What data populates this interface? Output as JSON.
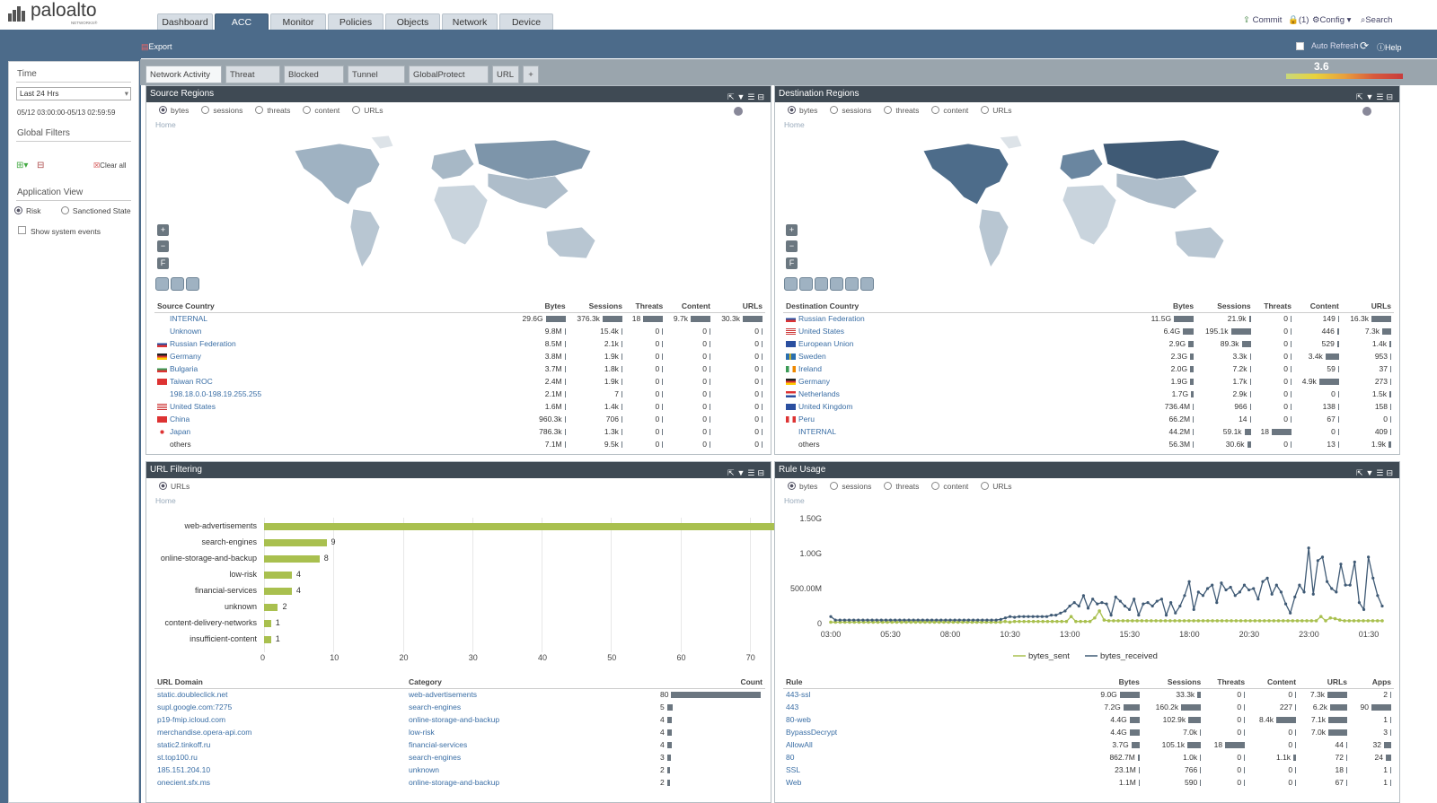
{
  "app": {
    "logo_text": "paloalto",
    "logo_sub": "NETWORKS®",
    "tabs": [
      "Dashboard",
      "ACC",
      "Monitor",
      "Policies",
      "Objects",
      "Network",
      "Device"
    ],
    "active_tab": "ACC",
    "commit": "Commit",
    "lock_count": "(1)",
    "config": "Config",
    "search": "Search",
    "export": "Export",
    "auto_refresh": "Auto Refresh",
    "help": "Help",
    "risk_value": "3.6"
  },
  "left": {
    "time_label": "Time",
    "time_select": "Last 24 Hrs",
    "time_range": "05/12 03:00:00-05/13 02:59:59",
    "global_filters": "Global Filters",
    "clear_all": "Clear all",
    "application_view": "Application View",
    "risk": "Risk",
    "sanctioned": "Sanctioned State",
    "show_system_events": "Show system events"
  },
  "subtabs": [
    "Network Activity",
    "Threat Activity",
    "Blocked Activity",
    "Tunnel Activity",
    "GlobalProtect Activity",
    "URL"
  ],
  "radio_opts": [
    "bytes",
    "sessions",
    "threats",
    "content",
    "URLs"
  ],
  "home": "Home",
  "source": {
    "title": "Source Regions",
    "headers": [
      "Source Country",
      "Bytes",
      "Sessions",
      "Threats",
      "Content",
      "URLs"
    ],
    "rows": [
      {
        "name": "INTERNAL",
        "flag": "",
        "bytes": "29.6G",
        "sessions": "376.3k",
        "threats": "18",
        "content": "9.7k",
        "urls": "30.3k",
        "b": 1,
        "s": 1,
        "t": 1,
        "c": 1,
        "u": 1
      },
      {
        "name": "Unknown",
        "flag": "",
        "bytes": "9.8M",
        "sessions": "15.4k",
        "threats": "0",
        "content": "0",
        "urls": "0",
        "b": 0.02,
        "s": 0.04,
        "t": 0,
        "c": 0,
        "u": 0
      },
      {
        "name": "Russian Federation",
        "flag": "ru",
        "bytes": "8.5M",
        "sessions": "2.1k",
        "threats": "0",
        "content": "0",
        "urls": "0",
        "b": 0.02,
        "s": 0.01,
        "t": 0,
        "c": 0,
        "u": 0
      },
      {
        "name": "Germany",
        "flag": "de",
        "bytes": "3.8M",
        "sessions": "1.9k",
        "threats": "0",
        "content": "0",
        "urls": "0",
        "b": 0.01,
        "s": 0.01,
        "t": 0,
        "c": 0,
        "u": 0
      },
      {
        "name": "Bulgaria",
        "flag": "bg",
        "bytes": "3.7M",
        "sessions": "1.8k",
        "threats": "0",
        "content": "0",
        "urls": "0",
        "b": 0.01,
        "s": 0.01,
        "t": 0,
        "c": 0,
        "u": 0
      },
      {
        "name": "Taiwan ROC",
        "flag": "tw",
        "bytes": "2.4M",
        "sessions": "1.9k",
        "threats": "0",
        "content": "0",
        "urls": "0",
        "b": 0.01,
        "s": 0.01,
        "t": 0,
        "c": 0,
        "u": 0
      },
      {
        "name": "198.18.0.0-198.19.255.255",
        "flag": "",
        "bytes": "2.1M",
        "sessions": "7",
        "threats": "0",
        "content": "0",
        "urls": "0",
        "b": 0.01,
        "s": 0,
        "t": 0,
        "c": 0,
        "u": 0
      },
      {
        "name": "United States",
        "flag": "us",
        "bytes": "1.6M",
        "sessions": "1.4k",
        "threats": "0",
        "content": "0",
        "urls": "0",
        "b": 0.01,
        "s": 0.01,
        "t": 0,
        "c": 0,
        "u": 0
      },
      {
        "name": "China",
        "flag": "cn",
        "bytes": "960.3k",
        "sessions": "706",
        "threats": "0",
        "content": "0",
        "urls": "0",
        "b": 0.01,
        "s": 0,
        "t": 0,
        "c": 0,
        "u": 0
      },
      {
        "name": "Japan",
        "flag": "jp",
        "bytes": "786.3k",
        "sessions": "1.3k",
        "threats": "0",
        "content": "0",
        "urls": "0",
        "b": 0.01,
        "s": 0.01,
        "t": 0,
        "c": 0,
        "u": 0
      },
      {
        "name": "others",
        "flag": "",
        "bytes": "7.1M",
        "sessions": "9.5k",
        "threats": "0",
        "content": "0",
        "urls": "0",
        "b": 0.02,
        "s": 0.03,
        "t": 0,
        "c": 0,
        "u": 0
      }
    ]
  },
  "dest": {
    "title": "Destination Regions",
    "headers": [
      "Destination Country",
      "Bytes",
      "Sessions",
      "Threats",
      "Content",
      "URLs"
    ],
    "rows": [
      {
        "name": "Russian Federation",
        "flag": "ru",
        "bytes": "11.5G",
        "sessions": "21.9k",
        "threats": "0",
        "content": "149",
        "urls": "16.3k",
        "b": 1,
        "s": 0.11,
        "t": 0,
        "c": 0.03,
        "u": 1
      },
      {
        "name": "United States",
        "flag": "us",
        "bytes": "6.4G",
        "sessions": "195.1k",
        "threats": "0",
        "content": "446",
        "urls": "7.3k",
        "b": 0.56,
        "s": 1,
        "t": 0,
        "c": 0.09,
        "u": 0.45
      },
      {
        "name": "European Union",
        "flag": "eu",
        "bytes": "2.9G",
        "sessions": "89.3k",
        "threats": "0",
        "content": "529",
        "urls": "1.4k",
        "b": 0.25,
        "s": 0.46,
        "t": 0,
        "c": 0.11,
        "u": 0.09
      },
      {
        "name": "Sweden",
        "flag": "se",
        "bytes": "2.3G",
        "sessions": "3.3k",
        "threats": "0",
        "content": "3.4k",
        "urls": "953",
        "b": 0.2,
        "s": 0.02,
        "t": 0,
        "c": 0.7,
        "u": 0.06
      },
      {
        "name": "Ireland",
        "flag": "ie",
        "bytes": "2.0G",
        "sessions": "7.2k",
        "threats": "0",
        "content": "59",
        "urls": "37",
        "b": 0.17,
        "s": 0.04,
        "t": 0,
        "c": 0.01,
        "u": 0
      },
      {
        "name": "Germany",
        "flag": "de",
        "bytes": "1.9G",
        "sessions": "1.7k",
        "threats": "0",
        "content": "4.9k",
        "urls": "273",
        "b": 0.17,
        "s": 0.01,
        "t": 0,
        "c": 1,
        "u": 0.02
      },
      {
        "name": "Netherlands",
        "flag": "nl",
        "bytes": "1.7G",
        "sessions": "2.9k",
        "threats": "0",
        "content": "0",
        "urls": "1.5k",
        "b": 0.15,
        "s": 0.01,
        "t": 0,
        "c": 0,
        "u": 0.09
      },
      {
        "name": "United Kingdom",
        "flag": "gb",
        "bytes": "736.4M",
        "sessions": "966",
        "threats": "0",
        "content": "138",
        "urls": "158",
        "b": 0.06,
        "s": 0,
        "t": 0,
        "c": 0.03,
        "u": 0.01
      },
      {
        "name": "Peru",
        "flag": "pe",
        "bytes": "66.2M",
        "sessions": "14",
        "threats": "0",
        "content": "67",
        "urls": "0",
        "b": 0.01,
        "s": 0,
        "t": 0,
        "c": 0.01,
        "u": 0
      },
      {
        "name": "INTERNAL",
        "flag": "",
        "bytes": "44.2M",
        "sessions": "59.1k",
        "threats": "18",
        "content": "0",
        "urls": "409",
        "b": 0.01,
        "s": 0.3,
        "t": 1,
        "c": 0,
        "u": 0.03
      },
      {
        "name": "others",
        "flag": "",
        "bytes": "56.3M",
        "sessions": "30.6k",
        "threats": "0",
        "content": "13",
        "urls": "1.9k",
        "b": 0.01,
        "s": 0.16,
        "t": 0,
        "c": 0,
        "u": 0.12
      }
    ]
  },
  "url_filtering": {
    "title": "URL Filtering",
    "radio": "URLs",
    "headers": [
      "URL Domain",
      "Category",
      "Count"
    ],
    "rows": [
      {
        "domain": "static.doubleclick.net",
        "category": "web-advertisements",
        "count": "80",
        "v": 80
      },
      {
        "domain": "supl.google.com:7275",
        "category": "search-engines",
        "count": "5",
        "v": 5
      },
      {
        "domain": "p19-fmip.icloud.com",
        "category": "online-storage-and-backup",
        "count": "4",
        "v": 4
      },
      {
        "domain": "merchandise.opera-api.com",
        "category": "low-risk",
        "count": "4",
        "v": 4
      },
      {
        "domain": "static2.tinkoff.ru",
        "category": "financial-services",
        "count": "4",
        "v": 4
      },
      {
        "domain": "st.top100.ru",
        "category": "search-engines",
        "count": "3",
        "v": 3
      },
      {
        "domain": "185.151.204.10",
        "category": "unknown",
        "count": "2",
        "v": 2
      },
      {
        "domain": "onecient.sfx.ms",
        "category": "online-storage-and-backup",
        "count": "2",
        "v": 2
      }
    ]
  },
  "rule_usage": {
    "title": "Rule Usage",
    "headers": [
      "Rule",
      "Bytes",
      "Sessions",
      "Threats",
      "Content",
      "URLs",
      "Apps"
    ],
    "rows": [
      {
        "rule": "443-ssl",
        "bytes": "9.0G",
        "sessions": "33.3k",
        "threats": "0",
        "content": "0",
        "urls": "7.3k",
        "apps": "2",
        "b": 1,
        "s": 0.2,
        "t": 0,
        "c": 0,
        "u": 1,
        "a": 0.02
      },
      {
        "rule": "443",
        "bytes": "7.2G",
        "sessions": "160.2k",
        "threats": "0",
        "content": "227",
        "urls": "6.2k",
        "apps": "90",
        "b": 0.8,
        "s": 1,
        "t": 0,
        "c": 0.02,
        "u": 0.85,
        "a": 1
      },
      {
        "rule": "80-web",
        "bytes": "4.4G",
        "sessions": "102.9k",
        "threats": "0",
        "content": "8.4k",
        "urls": "7.1k",
        "apps": "1",
        "b": 0.49,
        "s": 0.64,
        "t": 0,
        "c": 1,
        "u": 0.97,
        "a": 0.01
      },
      {
        "rule": "BypassDecrypt",
        "bytes": "4.4G",
        "sessions": "7.0k",
        "threats": "0",
        "content": "0",
        "urls": "7.0k",
        "apps": "3",
        "b": 0.49,
        "s": 0.04,
        "t": 0,
        "c": 0,
        "u": 0.96,
        "a": 0.03
      },
      {
        "rule": "AllowAll",
        "bytes": "3.7G",
        "sessions": "105.1k",
        "threats": "18",
        "content": "0",
        "urls": "44",
        "apps": "32",
        "b": 0.41,
        "s": 0.66,
        "t": 1,
        "c": 0,
        "u": 0.01,
        "a": 0.36
      },
      {
        "rule": "80",
        "bytes": "862.7M",
        "sessions": "1.0k",
        "threats": "0",
        "content": "1.1k",
        "urls": "72",
        "apps": "24",
        "b": 0.1,
        "s": 0.01,
        "t": 0,
        "c": 0.13,
        "u": 0.01,
        "a": 0.27
      },
      {
        "rule": "SSL",
        "bytes": "23.1M",
        "sessions": "766",
        "threats": "0",
        "content": "0",
        "urls": "18",
        "apps": "1",
        "b": 0.01,
        "s": 0,
        "t": 0,
        "c": 0,
        "u": 0,
        "a": 0.01
      },
      {
        "rule": "Web",
        "bytes": "1.1M",
        "sessions": "590",
        "threats": "0",
        "content": "0",
        "urls": "67",
        "apps": "1",
        "b": 0,
        "s": 0,
        "t": 0,
        "c": 0,
        "u": 0.01,
        "a": 0.01
      }
    ]
  },
  "chart_data": [
    {
      "type": "bar",
      "orientation": "horizontal",
      "categories": [
        "web-advertisements",
        "search-engines",
        "online-storage-and-backup",
        "low-risk",
        "financial-services",
        "unknown",
        "content-delivery-networks",
        "insufficient-content"
      ],
      "values": [
        80,
        9,
        8,
        4,
        4,
        2,
        1,
        1
      ],
      "xlim": [
        0,
        90
      ],
      "xticks": [
        "0",
        "10",
        "20",
        "30",
        "40",
        "50",
        "60",
        "70",
        "80",
        "90"
      ],
      "color": "#a9c04f"
    },
    {
      "type": "line",
      "yticks": [
        "1.50G",
        "1.00G",
        "500.00M",
        "0"
      ],
      "ylim": [
        0,
        1.5
      ],
      "yunit": "G",
      "xticks": [
        "03:00",
        "05:30",
        "08:00",
        "10:30",
        "13:00",
        "15:30",
        "18:00",
        "20:30",
        "23:00",
        "01:30"
      ],
      "series": [
        {
          "name": "bytes_sent",
          "color": "#a9c04f",
          "values": [
            0.02,
            0.02,
            0.02,
            0.02,
            0.02,
            0.02,
            0.02,
            0.02,
            0.02,
            0.02,
            0.02,
            0.02,
            0.02,
            0.02,
            0.02,
            0.02,
            0.02,
            0.02,
            0.02,
            0.02,
            0.02,
            0.02,
            0.02,
            0.02,
            0.02,
            0.02,
            0.02,
            0.02,
            0.02,
            0.02,
            0.02,
            0.02,
            0.02,
            0.02,
            0.02,
            0.02,
            0.02,
            0.03,
            0.02,
            0.03,
            0.03,
            0.03,
            0.03,
            0.03,
            0.03,
            0.03,
            0.03,
            0.03,
            0.03,
            0.03,
            0.03,
            0.1,
            0.03,
            0.03,
            0.03,
            0.03,
            0.08,
            0.18,
            0.05,
            0.04,
            0.04,
            0.04,
            0.04,
            0.04,
            0.04,
            0.04,
            0.04,
            0.04,
            0.04,
            0.04,
            0.04,
            0.04,
            0.04,
            0.04,
            0.04,
            0.04,
            0.04,
            0.04,
            0.04,
            0.04,
            0.04,
            0.04,
            0.04,
            0.04,
            0.04,
            0.04,
            0.04,
            0.04,
            0.04,
            0.04,
            0.04,
            0.04,
            0.04,
            0.04,
            0.04,
            0.04,
            0.04,
            0.04,
            0.04,
            0.04,
            0.04,
            0.04,
            0.04,
            0.04,
            0.1,
            0.04,
            0.08,
            0.07,
            0.05,
            0.04,
            0.04,
            0.04,
            0.04,
            0.04,
            0.04,
            0.04,
            0.04,
            0.04
          ]
        },
        {
          "name": "bytes_received",
          "color": "#3f5a75",
          "values": [
            0.1,
            0.05,
            0.05,
            0.05,
            0.05,
            0.05,
            0.05,
            0.05,
            0.05,
            0.05,
            0.05,
            0.05,
            0.05,
            0.05,
            0.05,
            0.05,
            0.05,
            0.05,
            0.05,
            0.05,
            0.05,
            0.05,
            0.05,
            0.05,
            0.05,
            0.05,
            0.05,
            0.05,
            0.05,
            0.05,
            0.05,
            0.05,
            0.05,
            0.05,
            0.05,
            0.05,
            0.05,
            0.06,
            0.08,
            0.1,
            0.09,
            0.1,
            0.1,
            0.1,
            0.1,
            0.1,
            0.1,
            0.1,
            0.12,
            0.12,
            0.15,
            0.18,
            0.25,
            0.3,
            0.25,
            0.4,
            0.22,
            0.35,
            0.28,
            0.3,
            0.28,
            0.12,
            0.38,
            0.32,
            0.25,
            0.2,
            0.35,
            0.12,
            0.28,
            0.3,
            0.25,
            0.32,
            0.35,
            0.12,
            0.3,
            0.15,
            0.25,
            0.4,
            0.6,
            0.2,
            0.45,
            0.4,
            0.5,
            0.55,
            0.3,
            0.58,
            0.48,
            0.52,
            0.4,
            0.45,
            0.55,
            0.48,
            0.5,
            0.35,
            0.6,
            0.65,
            0.42,
            0.55,
            0.45,
            0.28,
            0.15,
            0.38,
            0.55,
            0.45,
            1.08,
            0.42,
            0.9,
            0.95,
            0.6,
            0.5,
            0.45,
            0.85,
            0.55,
            0.55,
            0.88,
            0.3,
            0.2,
            0.95,
            0.65,
            0.4,
            0.25
          ]
        }
      ]
    }
  ]
}
